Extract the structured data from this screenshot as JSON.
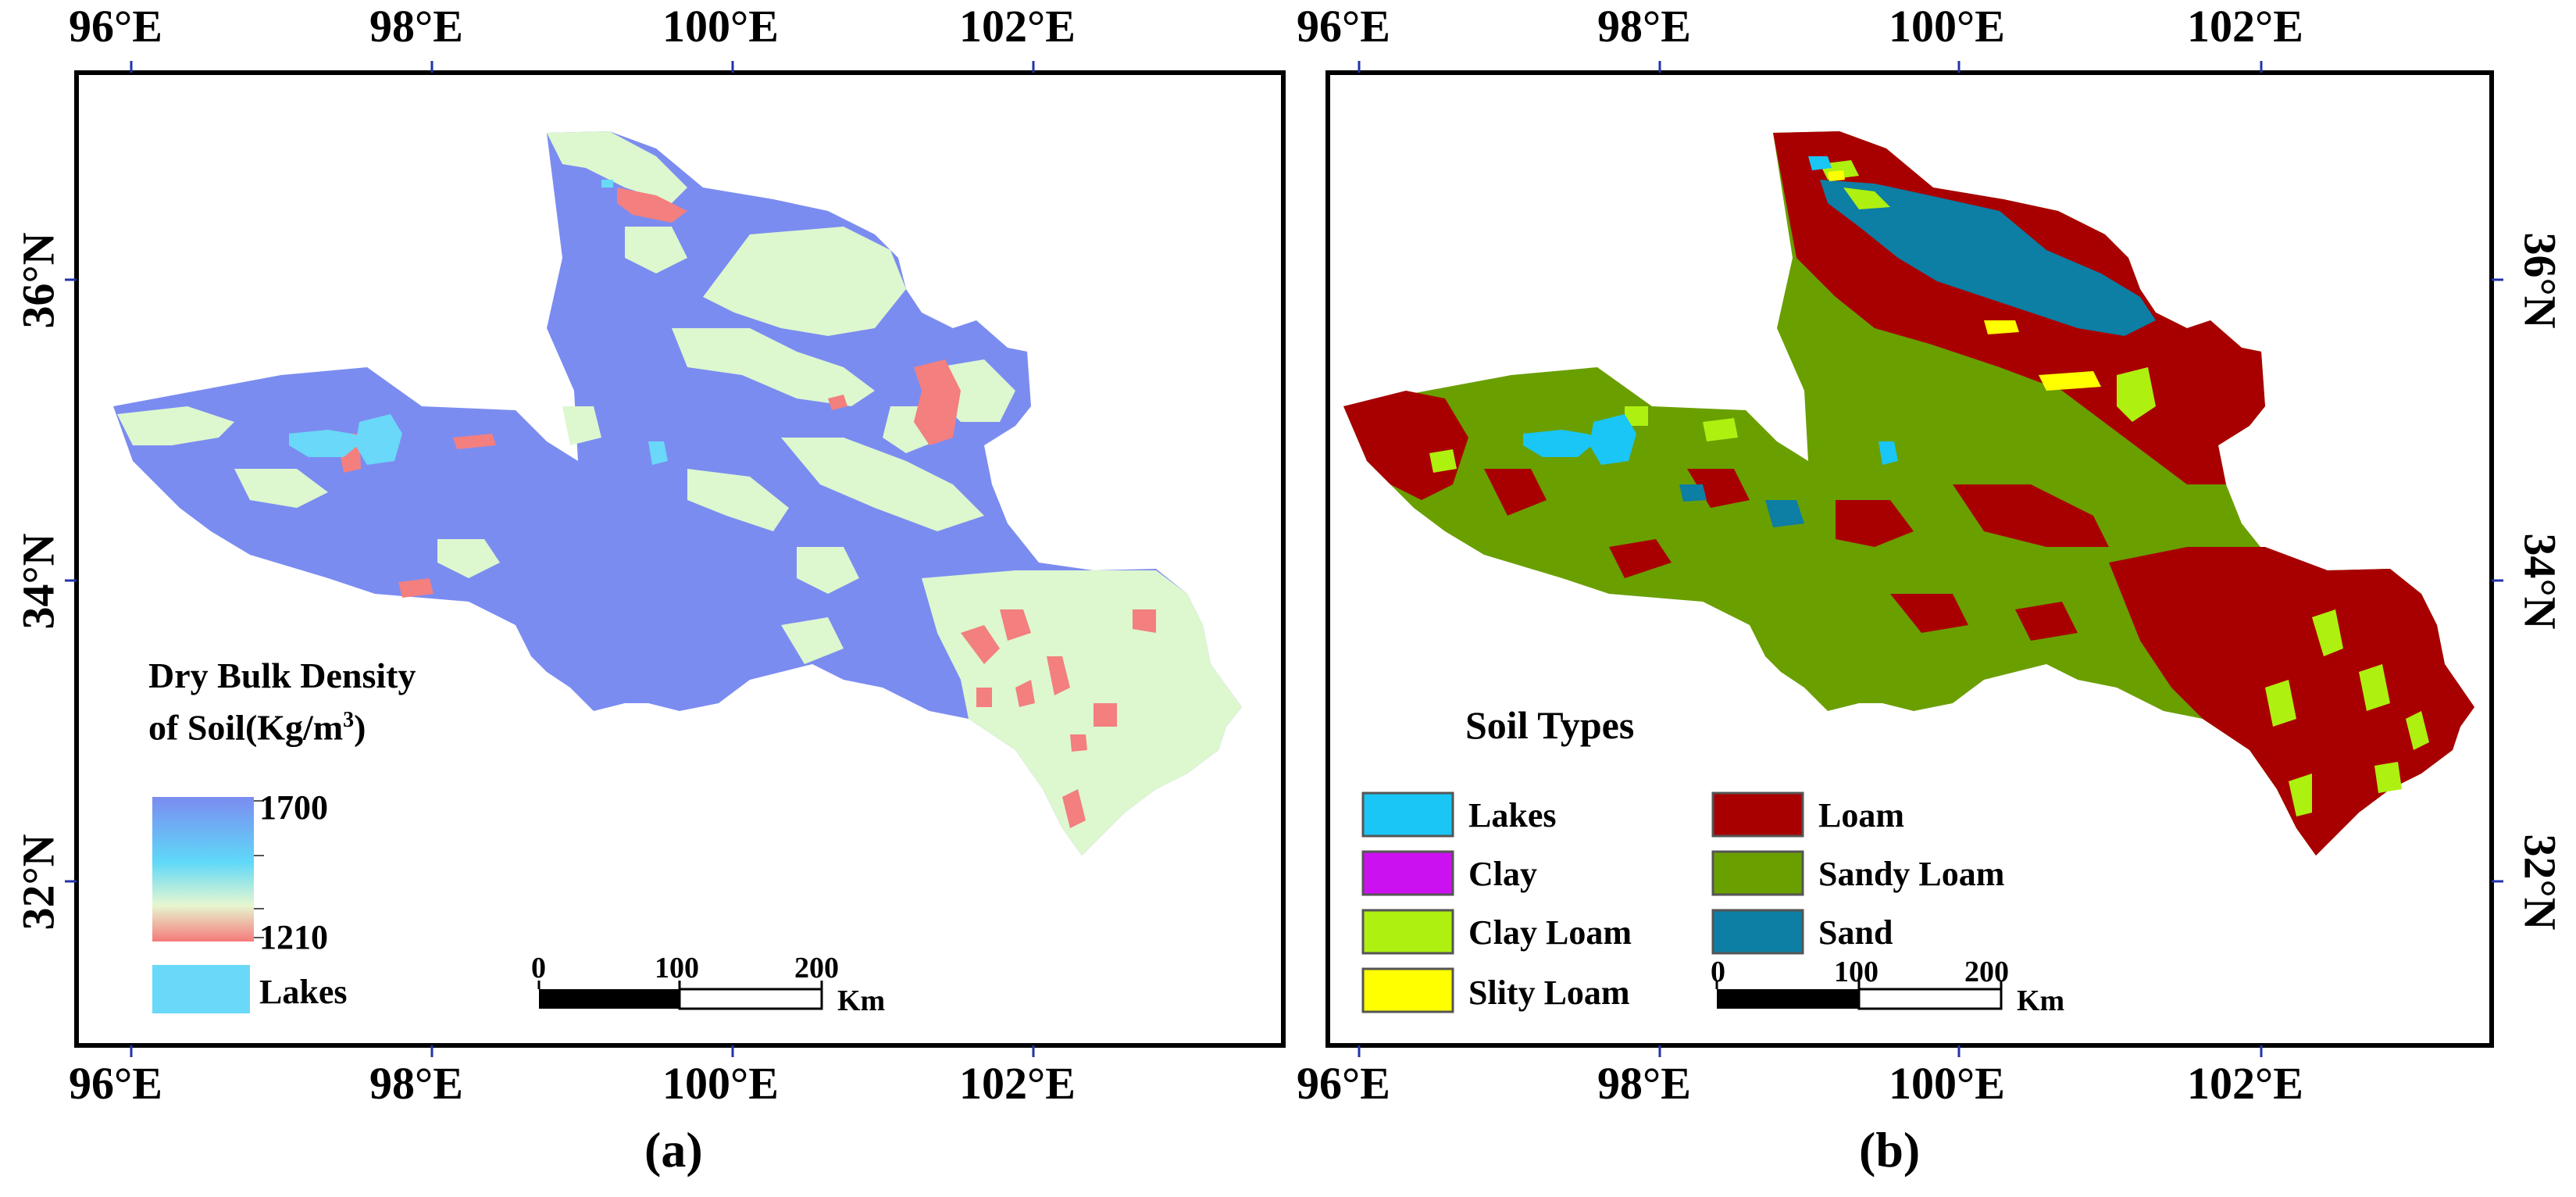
{
  "panel_a": {
    "caption": "(a)",
    "lon_labels": [
      "96°E",
      "98°E",
      "100°E",
      "102°E"
    ],
    "lat_labels": [
      "36°N",
      "34°N",
      "32°N"
    ],
    "legend": {
      "title_line1": "Dry Bulk Density",
      "title_line2": "of Soil(Kg/m",
      "title_sup": "3",
      "title_close": ")",
      "max_label": "1700",
      "min_label": "1210",
      "lakes_label": "Lakes",
      "gradient_colors": [
        "#7b8cf0",
        "#5fd8f8",
        "#e6f7d0",
        "#f57a7a"
      ],
      "lakes_color": "#6ad8f8"
    },
    "scalebar": {
      "ticks": [
        "0",
        "100",
        "200"
      ],
      "unit": "Km"
    },
    "colors": {
      "high_density": "#7b8cf0",
      "low_density": "#ddf7cf",
      "lowest": "#f37f7f",
      "lakes": "#6ad8f8"
    }
  },
  "panel_b": {
    "caption": "(b)",
    "lon_labels": [
      "96°E",
      "98°E",
      "100°E",
      "102°E"
    ],
    "lat_labels": [
      "36°N",
      "34°N",
      "32°N"
    ],
    "legend": {
      "title": "Soil Types",
      "items": [
        {
          "label": "Lakes",
          "color": "#19c6f5"
        },
        {
          "label": "Clay",
          "color": "#cc11f0"
        },
        {
          "label": "Clay Loam",
          "color": "#aef010"
        },
        {
          "label": "Slity Loam",
          "color": "#ffff00"
        },
        {
          "label": "Loam",
          "color": "#a80000"
        },
        {
          "label": "Sandy Loam",
          "color": "#6a9f00"
        },
        {
          "label": "Sand",
          "color": "#0d7ea4"
        }
      ]
    },
    "scalebar": {
      "ticks": [
        "0",
        "100",
        "200"
      ],
      "unit": "Km"
    }
  }
}
